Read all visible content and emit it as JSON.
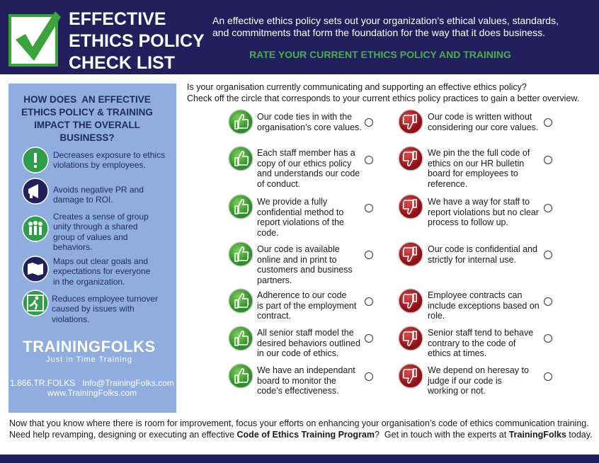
{
  "header": {
    "title": [
      "EFFECTIVE",
      "ETHICS POLICY",
      "CHECK LIST"
    ],
    "intro": [
      "An effective ethics policy sets out your organization’s ethical values, standards,",
      "and commitments that form the foundation for the way that it does business."
    ],
    "subtitle": "RATE YOUR CURRENT ETHICS POLICY AND TRAINING"
  },
  "sidebar": {
    "heading": [
      "HOW DOES  AN EFFECTIVE",
      "ETHICS POLICY & TRAINING",
      "IMPACT THE OVERALL",
      "BUSINESS?"
    ],
    "benefits": [
      {
        "lines": [
          "Decreases exposure to ethics",
          "violations by employees."
        ]
      },
      {
        "lines": [
          "Avoids negative PR and",
          "damage to ROI."
        ]
      },
      {
        "lines": [
          "Creates a sense of group",
          "unity through a shared",
          "group of values and",
          "behaviors."
        ]
      },
      {
        "lines": [
          "Maps out clear goals and",
          "expectations for everyone",
          "in the organization."
        ]
      },
      {
        "lines": [
          "Reduces employee turnover",
          "caused by issues with",
          "violations."
        ]
      }
    ],
    "logo": {
      "name": "TRAININGFOLKS",
      "tagline": "Just in Time Training"
    },
    "contact": [
      "1.866.TR.FOLKS   Info@TrainingFolks.com",
      "www.TrainingFolks.com"
    ]
  },
  "checklist": {
    "intro": [
      "Is your organisation currently communicating and supporting an effective ethics policy?",
      "Check off the circle that corresponds to your current ethics policy practices to gain a better overview."
    ],
    "rows": [
      {
        "good": [
          "Our code ties in with the",
          "organisation’s core values."
        ],
        "bad": [
          "Our code is written without",
          "considering our core values."
        ]
      },
      {
        "good": [
          "Each staff member has a",
          "copy of our ethics policy",
          "and understands our code",
          "of conduct."
        ],
        "bad": [
          "We pin the the full code of",
          "ethics on our HR bulletin",
          "board for employees to",
          "reference."
        ]
      },
      {
        "good": [
          "We provide a fully",
          "confidential method to",
          "report violations of the",
          "code."
        ],
        "bad": [
          "We have a way for staff to",
          "report violations but no clear",
          "process to follow up."
        ]
      },
      {
        "good": [
          "Our code is available",
          "online and in print to",
          "customers and business",
          "partners."
        ],
        "bad": [
          "Our code is confidential and",
          "strictly for internal use."
        ]
      },
      {
        "good": [
          "Adherence to our code",
          "is part of the employment",
          "contract."
        ],
        "bad": [
          "Employee contracts can",
          "include exceptions based on",
          "role."
        ]
      },
      {
        "good": [
          "All senior staff model the",
          "desired behaviors outlined",
          "in our code of ethics."
        ],
        "bad": [
          "Senior staff tend to behave",
          "contrary to the code of",
          "ethics at times."
        ]
      },
      {
        "good": [
          "We have an independant",
          "board to monitor the",
          "code’s effectiveness."
        ],
        "bad": [
          "We depend on heresay to",
          "judge if our code is",
          "working or not."
        ]
      }
    ]
  },
  "footer": [
    [
      {
        "text": "Now that you know where there is room for improvement, focus your efforts on enhancing your organisation’s code of ethics communication training.",
        "bold": false
      }
    ],
    [
      {
        "text": "Need help revamping, designing or executing an effective ",
        "bold": false
      },
      {
        "text": "Code of Ethics Training Program",
        "bold": true
      },
      {
        "text": "?  Get in touch with the experts at ",
        "bold": false
      },
      {
        "text": "TrainingFolks",
        "bold": true
      },
      {
        "text": " today.",
        "bold": false
      }
    ]
  ]
}
